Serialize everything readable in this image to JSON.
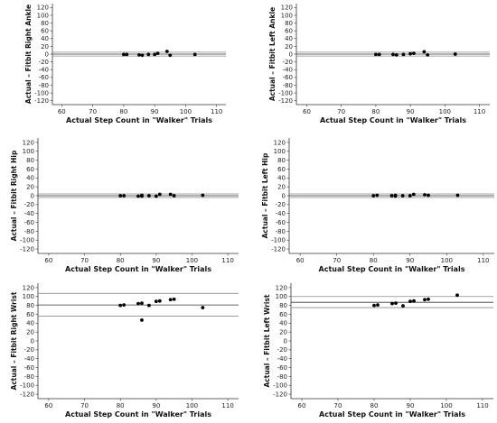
{
  "chart_data": [
    {
      "type": "scatter",
      "xlabel": "Actual Step Count in \"Walker\" Trials",
      "ylabel": "Actual – Fitbit Right Ankle",
      "xticks": [
        60,
        70,
        80,
        90,
        100,
        110
      ],
      "yticks": [
        -120,
        -100,
        -80,
        -60,
        -40,
        -20,
        0,
        20,
        40,
        60,
        80,
        100,
        120
      ],
      "xlim": [
        57,
        113
      ],
      "ylim": [
        -130,
        130
      ],
      "mean_line": 0,
      "limit_lines": [
        -5,
        5
      ],
      "points": [
        [
          80,
          -1
        ],
        [
          81,
          -1
        ],
        [
          85,
          -2
        ],
        [
          86,
          -3
        ],
        [
          88,
          -1
        ],
        [
          90,
          -1
        ],
        [
          91,
          2
        ],
        [
          94,
          7
        ],
        [
          95,
          -3
        ],
        [
          103,
          -1
        ]
      ]
    },
    {
      "type": "scatter",
      "xlabel": "Actual Step Count in \"Walker\" Trials",
      "ylabel": "Actual – Fitbit Left Ankle",
      "xticks": [
        60,
        70,
        80,
        90,
        100,
        110
      ],
      "yticks": [
        -120,
        -100,
        -80,
        -60,
        -40,
        -20,
        0,
        20,
        40,
        60,
        80,
        100,
        120
      ],
      "xlim": [
        57,
        113
      ],
      "ylim": [
        -130,
        130
      ],
      "mean_line": 0,
      "limit_lines": [
        -5,
        5
      ],
      "points": [
        [
          80,
          -1
        ],
        [
          81,
          -1
        ],
        [
          85,
          -1
        ],
        [
          86,
          -2
        ],
        [
          88,
          -1
        ],
        [
          90,
          1
        ],
        [
          91,
          2
        ],
        [
          94,
          6
        ],
        [
          95,
          -2
        ],
        [
          103,
          0
        ]
      ]
    },
    {
      "type": "scatter",
      "xlabel": "Actual Step Count in \"Walker\" Trials",
      "ylabel": "Actual – Fitbit Right Hip",
      "xticks": [
        60,
        70,
        80,
        90,
        100,
        110
      ],
      "yticks": [
        -120,
        -100,
        -80,
        -60,
        -40,
        -20,
        0,
        20,
        40,
        60,
        80,
        100,
        120
      ],
      "xlim": [
        57,
        113
      ],
      "ylim": [
        -130,
        130
      ],
      "mean_line": 0,
      "limit_lines": [
        -4,
        4
      ],
      "points": [
        [
          80,
          0
        ],
        [
          81,
          0
        ],
        [
          85,
          -1
        ],
        [
          86,
          1
        ],
        [
          86,
          -1
        ],
        [
          88,
          0
        ],
        [
          90,
          -1
        ],
        [
          91,
          3
        ],
        [
          94,
          3
        ],
        [
          95,
          0
        ],
        [
          103,
          1
        ]
      ]
    },
    {
      "type": "scatter",
      "xlabel": "Actual Step Count in \"Walker\" Trials",
      "ylabel": "Actual – Fitbit Left Hip",
      "xticks": [
        60,
        70,
        80,
        90,
        100,
        110
      ],
      "yticks": [
        -120,
        -100,
        -80,
        -60,
        -40,
        -20,
        0,
        20,
        40,
        60,
        80,
        100,
        120
      ],
      "xlim": [
        57,
        113
      ],
      "ylim": [
        -130,
        130
      ],
      "mean_line": 0,
      "limit_lines": [
        -4,
        4
      ],
      "points": [
        [
          80,
          0
        ],
        [
          81,
          1
        ],
        [
          85,
          0
        ],
        [
          86,
          1
        ],
        [
          86,
          -1
        ],
        [
          88,
          0
        ],
        [
          90,
          0
        ],
        [
          91,
          3
        ],
        [
          94,
          2
        ],
        [
          95,
          1
        ],
        [
          103,
          1
        ]
      ]
    },
    {
      "type": "scatter",
      "xlabel": "Actual Step Count in \"Walker\" Trials",
      "ylabel": "Actual – Fitbit Right Wrist",
      "xticks": [
        60,
        70,
        80,
        90,
        100,
        110
      ],
      "yticks": [
        -120,
        -100,
        -80,
        -60,
        -40,
        -20,
        0,
        20,
        40,
        60,
        80,
        100,
        120
      ],
      "xlim": [
        57,
        113
      ],
      "ylim": [
        -130,
        130
      ],
      "mean_line": 81,
      "limit_lines": [
        56,
        107
      ],
      "points": [
        [
          80,
          80
        ],
        [
          81,
          81
        ],
        [
          85,
          84
        ],
        [
          86,
          85
        ],
        [
          86,
          47
        ],
        [
          88,
          80
        ],
        [
          90,
          89
        ],
        [
          91,
          90
        ],
        [
          94,
          93
        ],
        [
          95,
          94
        ],
        [
          103,
          75
        ]
      ]
    },
    {
      "type": "scatter",
      "xlabel": "Actual Step Count in \"Walker\" Trials",
      "ylabel": "Actual – Fitbit Left Wrist",
      "xticks": [
        60,
        70,
        80,
        90,
        100,
        110
      ],
      "yticks": [
        -120,
        -100,
        -80,
        -60,
        -40,
        -20,
        0,
        20,
        40,
        60,
        80,
        100,
        120
      ],
      "xlim": [
        57,
        113
      ],
      "ylim": [
        -130,
        130
      ],
      "mean_line": 87,
      "limit_lines": [
        75,
        100
      ],
      "points": [
        [
          80,
          80
        ],
        [
          81,
          81
        ],
        [
          85,
          84
        ],
        [
          86,
          85
        ],
        [
          88,
          79
        ],
        [
          90,
          89
        ],
        [
          91,
          90
        ],
        [
          94,
          93
        ],
        [
          95,
          94
        ],
        [
          103,
          103
        ]
      ]
    }
  ]
}
